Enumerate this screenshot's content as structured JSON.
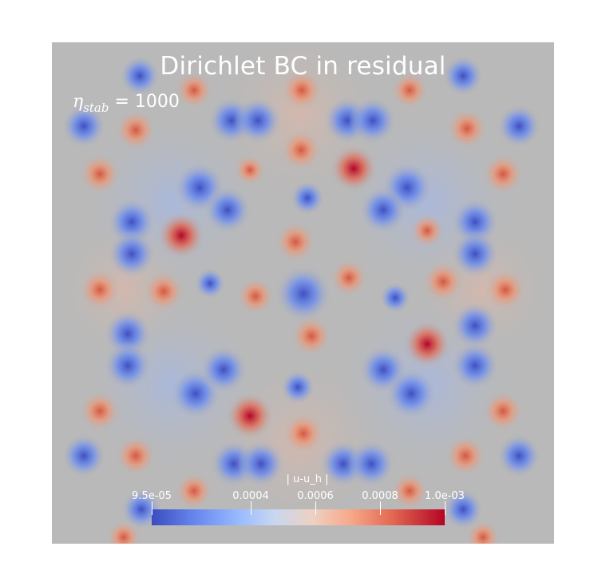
{
  "title": "Dirichlet BC in residual",
  "annotation": {
    "symbol": "η",
    "subscript": "stab",
    "rest": " = 1000"
  },
  "colorbar": {
    "title": "| u-u_h |",
    "colormap": "coolwarm",
    "range": [
      9.5e-05,
      0.001
    ],
    "ticks": [
      {
        "label": "9.5e-05",
        "value": 9.5e-05
      },
      {
        "label": "0.0004",
        "value": 0.0004
      },
      {
        "label": "0.0006",
        "value": 0.0006
      },
      {
        "label": "0.0008",
        "value": 0.0008
      },
      {
        "label": "1.0e-03",
        "value": 0.001
      }
    ]
  },
  "colors": {
    "background_field": "#b9b9b9",
    "low": "#3b4cc0",
    "high": "#b40426",
    "text": "#ffffff"
  }
}
